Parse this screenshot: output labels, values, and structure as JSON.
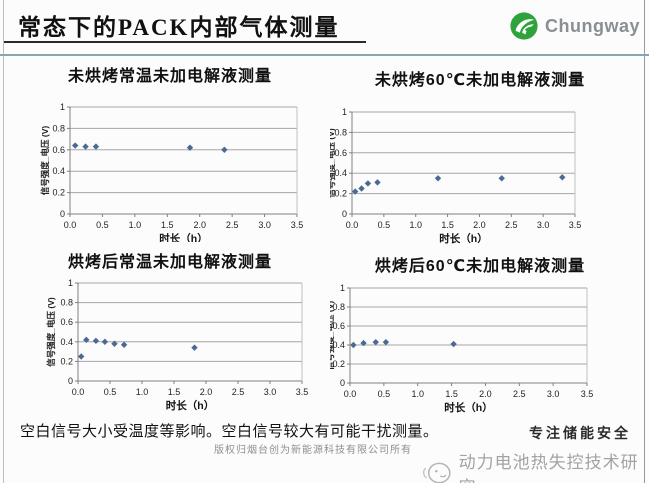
{
  "header": {
    "title": "常态下的PACK内部气体测量",
    "logo_text": "Chungway"
  },
  "colors": {
    "logo_green": "#2ea33b",
    "marker_blue": "#4a6a94",
    "gridline_gray": "#a6a6a6",
    "axis_gray": "#7f7f7f",
    "plot_border_gray": "#c0c0c0",
    "header_rule_blue": "#8aa3b5",
    "title_underline": "#2a2a2a",
    "watermark_gray": "#a3a3a3"
  },
  "chart_data": [
    {
      "type": "scatter",
      "title": "未烘烤常温未加电解液测量",
      "xlabel": "时长（h）",
      "ylabel": "信号强度_电压 (V)",
      "xlim": [
        0,
        3.5
      ],
      "ylim": [
        0,
        1
      ],
      "xticks": [
        "0.0",
        "0.5",
        "1.0",
        "1.5",
        "2.0",
        "2.5",
        "3.0",
        "3.5"
      ],
      "yticks": [
        "0",
        "0.2",
        "0.4",
        "0.6",
        "0.8",
        "1"
      ],
      "grid": "horizontal",
      "legend": "none",
      "points": [
        [
          0.08,
          0.64
        ],
        [
          0.24,
          0.63
        ],
        [
          0.4,
          0.63
        ],
        [
          1.85,
          0.62
        ],
        [
          2.38,
          0.6
        ]
      ]
    },
    {
      "type": "scatter",
      "title": "未烘烤60℃未加电解液测量",
      "xlabel": "时长（h）",
      "ylabel": "信号强度_电压 (V)",
      "xlim": [
        0,
        3.5
      ],
      "ylim": [
        0,
        1
      ],
      "xticks": [
        "0.0",
        "0.5",
        "1.0",
        "1.5",
        "2.0",
        "2.5",
        "3.0",
        "3.5"
      ],
      "yticks": [
        "0",
        "0.2",
        "0.4",
        "0.6",
        "0.8",
        "1"
      ],
      "grid": "horizontal",
      "legend": "none",
      "points": [
        [
          0.05,
          0.22
        ],
        [
          0.15,
          0.25
        ],
        [
          0.25,
          0.3
        ],
        [
          0.4,
          0.31
        ],
        [
          1.35,
          0.35
        ],
        [
          2.35,
          0.35
        ],
        [
          3.3,
          0.36
        ]
      ]
    },
    {
      "type": "scatter",
      "title": "烘烤后常温未加电解液测量",
      "xlabel": "时长（h）",
      "ylabel": "信号强度_电压 (V)",
      "xlim": [
        0,
        3.5
      ],
      "ylim": [
        0,
        1
      ],
      "xticks": [
        "0.0",
        "0.5",
        "1.0",
        "1.5",
        "2.0",
        "2.5",
        "3.0",
        "3.5"
      ],
      "yticks": [
        "0",
        "0.2",
        "0.4",
        "0.6",
        "0.8",
        "1"
      ],
      "grid": "horizontal",
      "legend": "none",
      "points": [
        [
          0.05,
          0.25
        ],
        [
          0.13,
          0.42
        ],
        [
          0.28,
          0.41
        ],
        [
          0.42,
          0.4
        ],
        [
          0.57,
          0.38
        ],
        [
          0.72,
          0.37
        ],
        [
          1.82,
          0.34
        ]
      ]
    },
    {
      "type": "scatter",
      "title": "烘烤后60℃未加电解液测量",
      "xlabel": "时长（h）",
      "ylabel": "信号强度_电压 (V)",
      "xlim": [
        0,
        3.5
      ],
      "ylim": [
        0,
        1
      ],
      "xticks": [
        "0.0",
        "0.5",
        "1.0",
        "1.5",
        "2.0",
        "2.5",
        "3.0",
        "3.5"
      ],
      "yticks": [
        "0",
        "0.2",
        "0.4",
        "0.6",
        "0.8",
        "1"
      ],
      "grid": "horizontal",
      "legend": "none",
      "points": [
        [
          0.05,
          0.4
        ],
        [
          0.2,
          0.42
        ],
        [
          0.38,
          0.43
        ],
        [
          0.53,
          0.43
        ],
        [
          1.53,
          0.41
        ]
      ]
    }
  ],
  "footer": {
    "note": "空白信号大小受温度等影响。空白信号较大有可能干扰测量。",
    "copyright_watermark": "版权归烟台创为新能源科技有限公司所有",
    "slogan": "专注储能安全",
    "brand_watermark": "动力电池热失控技术研究"
  }
}
